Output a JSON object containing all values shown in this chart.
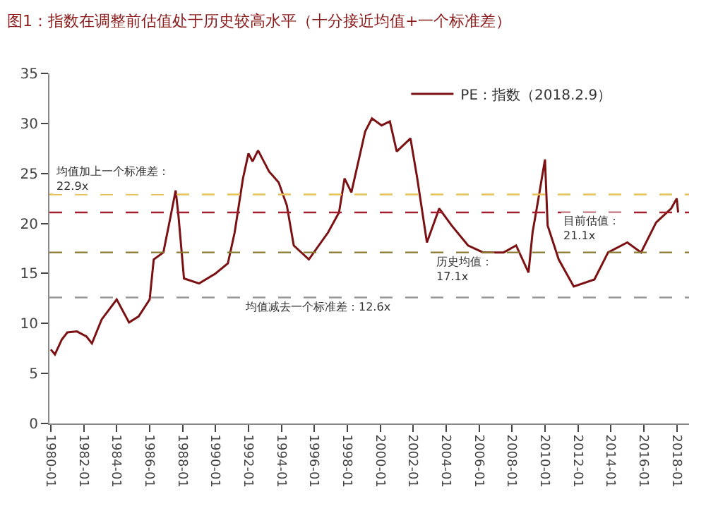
{
  "chart_data": {
    "type": "line",
    "title": "图1：指数在调整前估值处于历史较高水平（十分接近均值+一个标准差）",
    "x": [
      "1980-01",
      "1980-04",
      "1980-09",
      "1981-01",
      "1981-08",
      "1982-03",
      "1982-07",
      "1983-02",
      "1984-01",
      "1984-10",
      "1985-05",
      "1986-01",
      "1986-04",
      "1986-11",
      "1987-04",
      "1987-08",
      "1987-10",
      "1988-02",
      "1989-01",
      "1990-01",
      "1990-10",
      "1991-03",
      "1991-09",
      "1992-01",
      "1992-04",
      "1992-08",
      "1993-04",
      "1993-11",
      "1994-05",
      "1994-10",
      "1995-09",
      "1996-11",
      "1997-07",
      "1997-11",
      "1998-04",
      "1999-02",
      "1999-07",
      "2000-02",
      "2000-08",
      "2001-01",
      "2001-11",
      "2002-04",
      "2002-11",
      "2003-08",
      "2004-05",
      "2005-05",
      "2006-04",
      "2007-07",
      "2008-04",
      "2009-01",
      "2009-04",
      "2009-09",
      "2010-01",
      "2010-03",
      "2010-11",
      "2011-10",
      "2013-01",
      "2013-11",
      "2015-01",
      "2015-11",
      "2016-10",
      "2017-09",
      "2018-01",
      "2018-02"
    ],
    "series": [
      {
        "name": "PE：指数（2018.2.9）",
        "color": "#7b1113",
        "values": [
          7.4,
          6.9,
          8.4,
          9.1,
          9.2,
          8.7,
          8.0,
          10.4,
          12.4,
          10.1,
          10.7,
          12.4,
          16.4,
          17.1,
          20.5,
          23.3,
          20.8,
          14.5,
          14.0,
          15.0,
          16.0,
          19.1,
          24.5,
          27.0,
          26.2,
          27.3,
          25.2,
          24.1,
          21.8,
          17.8,
          16.4,
          19.1,
          21.1,
          24.5,
          23.1,
          29.2,
          30.5,
          29.8,
          30.2,
          27.2,
          28.5,
          24.5,
          18.1,
          21.5,
          19.8,
          17.8,
          17.1,
          17.1,
          17.8,
          15.1,
          19.1,
          23.1,
          26.4,
          19.8,
          16.4,
          13.7,
          14.4,
          17.1,
          18.1,
          17.1,
          20.1,
          21.5,
          22.5,
          21.1
        ]
      }
    ],
    "xlim": [
      "1979-12",
      "2018-10"
    ],
    "xticks": [
      {
        "value": "1980-01",
        "label": "1980-01"
      },
      {
        "value": "1982-01",
        "label": "1982-01"
      },
      {
        "value": "1984-01",
        "label": "1984-01"
      },
      {
        "value": "1986-01",
        "label": "1986-01"
      },
      {
        "value": "1988-01",
        "label": "1988-01"
      },
      {
        "value": "1990-01",
        "label": "1990-01"
      },
      {
        "value": "1992-01",
        "label": "1992-01"
      },
      {
        "value": "1994-01",
        "label": "1994-01"
      },
      {
        "value": "1996-01",
        "label": "1996-01"
      },
      {
        "value": "1998-01",
        "label": "1998-01"
      },
      {
        "value": "2000-01",
        "label": "2000-01"
      },
      {
        "value": "2002-01",
        "label": "2002-01"
      },
      {
        "value": "2004-01",
        "label": "2004-01"
      },
      {
        "value": "2006-01",
        "label": "2006-01"
      },
      {
        "value": "2008-01",
        "label": "2008-01"
      },
      {
        "value": "2010-01",
        "label": "2010-01"
      },
      {
        "value": "2012-01",
        "label": "2012-01"
      },
      {
        "value": "2014-01",
        "label": "2014-01"
      },
      {
        "value": "2016-01",
        "label": "2016-01"
      },
      {
        "value": "2018-01",
        "label": "2018-01"
      }
    ],
    "ylim": [
      0,
      35
    ],
    "yticks": [
      0,
      5,
      10,
      15,
      20,
      25,
      30,
      35
    ],
    "ref_lines": [
      {
        "axis": "y",
        "value": 22.9,
        "label": "均值加上一个标准差：22.9x",
        "color": "#e8c25a",
        "line_style": "dashed"
      },
      {
        "axis": "y",
        "value": 21.1,
        "label": "目前估值：21.1x",
        "color": "#a02030",
        "line_style": "dashed"
      },
      {
        "axis": "y",
        "value": 17.1,
        "label": "历史均值：17.1x",
        "color": "#8a7a30",
        "line_style": "dashed"
      },
      {
        "axis": "y",
        "value": 12.6,
        "label": "均值减去一个标准差：12.6x",
        "color": "#999999",
        "line_style": "dashed"
      }
    ],
    "legend": "top right"
  }
}
